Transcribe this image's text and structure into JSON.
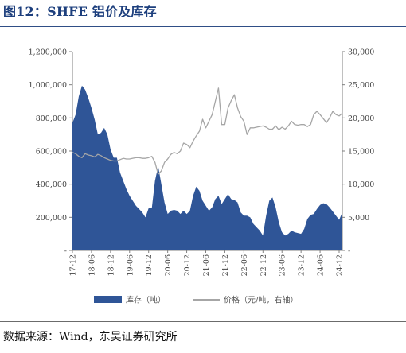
{
  "title": "图12：SHFE 铝价及库存",
  "source": "数据来源：Wind，东吴证券研究所",
  "chart_data": {
    "type": "line",
    "subtype": "area-and-line (dual axis)",
    "grid": false,
    "legend_position": "bottom",
    "x_tick_labels": [
      "17-12",
      "18-06",
      "18-12",
      "19-06",
      "19-12",
      "20-06",
      "20-12",
      "21-06",
      "21-12",
      "22-06",
      "22-12",
      "23-06",
      "23-12",
      "24-06",
      "24-12"
    ],
    "x_range": [
      "2017-12",
      "2025-01"
    ],
    "left_axis": {
      "range": [
        0,
        1200000
      ],
      "ticks": [
        0,
        200000,
        400000,
        600000,
        800000,
        1000000,
        1200000
      ],
      "tick_labels": [
        "-",
        "200,000",
        "400,000",
        "600,000",
        "800,000",
        "1,000,000",
        "1,200,000"
      ]
    },
    "right_axis": {
      "range": [
        0,
        30000
      ],
      "ticks": [
        0,
        5000,
        10000,
        15000,
        20000,
        25000,
        30000
      ],
      "tick_labels": [
        "-",
        "5,000",
        "10,000",
        "15,000",
        "20,000",
        "25,000",
        "30,000"
      ]
    },
    "series": [
      {
        "name": "库存（吨）",
        "axis": "left",
        "style": "area",
        "color": "#2f5597",
        "points": [
          [
            "2017-12",
            770000
          ],
          [
            "2018-01",
            820000
          ],
          [
            "2018-02",
            930000
          ],
          [
            "2018-03",
            995000
          ],
          [
            "2018-04",
            970000
          ],
          [
            "2018-05",
            920000
          ],
          [
            "2018-06",
            860000
          ],
          [
            "2018-07",
            790000
          ],
          [
            "2018-08",
            700000
          ],
          [
            "2018-09",
            710000
          ],
          [
            "2018-10",
            740000
          ],
          [
            "2018-11",
            700000
          ],
          [
            "2018-12",
            610000
          ],
          [
            "2019-01",
            560000
          ],
          [
            "2019-02",
            560000
          ],
          [
            "2019-03",
            470000
          ],
          [
            "2019-04",
            420000
          ],
          [
            "2019-05",
            370000
          ],
          [
            "2019-06",
            330000
          ],
          [
            "2019-07",
            300000
          ],
          [
            "2019-08",
            270000
          ],
          [
            "2019-09",
            250000
          ],
          [
            "2019-10",
            230000
          ],
          [
            "2019-11",
            200000
          ],
          [
            "2019-12",
            255000
          ],
          [
            "2020-01",
            255000
          ],
          [
            "2020-02",
            420000
          ],
          [
            "2020-03",
            510000
          ],
          [
            "2020-04",
            400000
          ],
          [
            "2020-05",
            290000
          ],
          [
            "2020-06",
            220000
          ],
          [
            "2020-07",
            240000
          ],
          [
            "2020-08",
            245000
          ],
          [
            "2020-09",
            240000
          ],
          [
            "2020-10",
            220000
          ],
          [
            "2020-11",
            240000
          ],
          [
            "2020-12",
            220000
          ],
          [
            "2021-01",
            240000
          ],
          [
            "2021-02",
            330000
          ],
          [
            "2021-03",
            385000
          ],
          [
            "2021-04",
            360000
          ],
          [
            "2021-05",
            300000
          ],
          [
            "2021-06",
            270000
          ],
          [
            "2021-07",
            240000
          ],
          [
            "2021-08",
            260000
          ],
          [
            "2021-09",
            310000
          ],
          [
            "2021-10",
            330000
          ],
          [
            "2021-11",
            280000
          ],
          [
            "2021-12",
            310000
          ],
          [
            "2022-01",
            340000
          ],
          [
            "2022-02",
            310000
          ],
          [
            "2022-03",
            305000
          ],
          [
            "2022-04",
            290000
          ],
          [
            "2022-05",
            230000
          ],
          [
            "2022-06",
            210000
          ],
          [
            "2022-07",
            210000
          ],
          [
            "2022-08",
            200000
          ],
          [
            "2022-09",
            160000
          ],
          [
            "2022-10",
            140000
          ],
          [
            "2022-11",
            120000
          ],
          [
            "2022-12",
            90000
          ],
          [
            "2023-01",
            210000
          ],
          [
            "2023-02",
            300000
          ],
          [
            "2023-03",
            320000
          ],
          [
            "2023-04",
            260000
          ],
          [
            "2023-05",
            170000
          ],
          [
            "2023-06",
            110000
          ],
          [
            "2023-07",
            90000
          ],
          [
            "2023-08",
            100000
          ],
          [
            "2023-09",
            120000
          ],
          [
            "2023-10",
            110000
          ],
          [
            "2023-11",
            105000
          ],
          [
            "2023-12",
            100000
          ],
          [
            "2024-01",
            130000
          ],
          [
            "2024-02",
            190000
          ],
          [
            "2024-03",
            215000
          ],
          [
            "2024-04",
            220000
          ],
          [
            "2024-05",
            250000
          ],
          [
            "2024-06",
            275000
          ],
          [
            "2024-07",
            285000
          ],
          [
            "2024-08",
            280000
          ],
          [
            "2024-09",
            260000
          ],
          [
            "2024-10",
            235000
          ],
          [
            "2024-11",
            210000
          ],
          [
            "2024-12",
            185000
          ],
          [
            "2025-01",
            230000
          ]
        ]
      },
      {
        "name": "价格（元/吨，右轴）",
        "axis": "right",
        "style": "line",
        "color": "#a6a6a6",
        "points": [
          [
            "2017-12",
            14800
          ],
          [
            "2018-01",
            14600
          ],
          [
            "2018-02",
            14200
          ],
          [
            "2018-03",
            14000
          ],
          [
            "2018-04",
            14600
          ],
          [
            "2018-05",
            14400
          ],
          [
            "2018-06",
            14300
          ],
          [
            "2018-07",
            14100
          ],
          [
            "2018-08",
            14500
          ],
          [
            "2018-09",
            14300
          ],
          [
            "2018-10",
            14000
          ],
          [
            "2018-11",
            13800
          ],
          [
            "2018-12",
            13600
          ],
          [
            "2019-01",
            13500
          ],
          [
            "2019-02",
            13500
          ],
          [
            "2019-03",
            13700
          ],
          [
            "2019-04",
            13900
          ],
          [
            "2019-05",
            13800
          ],
          [
            "2019-06",
            13800
          ],
          [
            "2019-07",
            13900
          ],
          [
            "2019-08",
            14000
          ],
          [
            "2019-09",
            14000
          ],
          [
            "2019-10",
            13900
          ],
          [
            "2019-11",
            13900
          ],
          [
            "2019-12",
            14000
          ],
          [
            "2020-01",
            14200
          ],
          [
            "2020-02",
            13300
          ],
          [
            "2020-03",
            11500
          ],
          [
            "2020-04",
            12000
          ],
          [
            "2020-05",
            13300
          ],
          [
            "2020-06",
            13800
          ],
          [
            "2020-07",
            14500
          ],
          [
            "2020-08",
            14800
          ],
          [
            "2020-09",
            14600
          ],
          [
            "2020-10",
            15000
          ],
          [
            "2020-11",
            16200
          ],
          [
            "2020-12",
            16000
          ],
          [
            "2021-01",
            15500
          ],
          [
            "2021-02",
            16500
          ],
          [
            "2021-03",
            17300
          ],
          [
            "2021-04",
            18000
          ],
          [
            "2021-05",
            19800
          ],
          [
            "2021-06",
            18500
          ],
          [
            "2021-07",
            19500
          ],
          [
            "2021-08",
            20500
          ],
          [
            "2021-09",
            22500
          ],
          [
            "2021-10",
            24500
          ],
          [
            "2021-11",
            19000
          ],
          [
            "2021-12",
            19000
          ],
          [
            "2022-01",
            21500
          ],
          [
            "2022-02",
            22600
          ],
          [
            "2022-03",
            23500
          ],
          [
            "2022-04",
            21500
          ],
          [
            "2022-05",
            20200
          ],
          [
            "2022-06",
            19500
          ],
          [
            "2022-07",
            17500
          ],
          [
            "2022-08",
            18500
          ],
          [
            "2022-09",
            18500
          ],
          [
            "2022-10",
            18600
          ],
          [
            "2022-11",
            18700
          ],
          [
            "2022-12",
            18800
          ],
          [
            "2023-01",
            18600
          ],
          [
            "2023-02",
            18300
          ],
          [
            "2023-03",
            18300
          ],
          [
            "2023-04",
            18800
          ],
          [
            "2023-05",
            18200
          ],
          [
            "2023-06",
            18600
          ],
          [
            "2023-07",
            18300
          ],
          [
            "2023-08",
            18800
          ],
          [
            "2023-09",
            19500
          ],
          [
            "2023-10",
            19000
          ],
          [
            "2023-11",
            18900
          ],
          [
            "2023-12",
            19000
          ],
          [
            "2024-01",
            19000
          ],
          [
            "2024-02",
            18700
          ],
          [
            "2024-03",
            19000
          ],
          [
            "2024-04",
            20500
          ],
          [
            "2024-05",
            21000
          ],
          [
            "2024-06",
            20500
          ],
          [
            "2024-07",
            19900
          ],
          [
            "2024-08",
            19300
          ],
          [
            "2024-09",
            20000
          ],
          [
            "2024-10",
            21000
          ],
          [
            "2024-11",
            20500
          ],
          [
            "2024-12",
            20300
          ],
          [
            "2025-01",
            20700
          ]
        ]
      }
    ],
    "legend": [
      {
        "label": "库存（吨）",
        "swatch": "area",
        "color": "#2f5597"
      },
      {
        "label": "价格（元/吨，右轴）",
        "swatch": "line",
        "color": "#a6a6a6"
      }
    ]
  }
}
